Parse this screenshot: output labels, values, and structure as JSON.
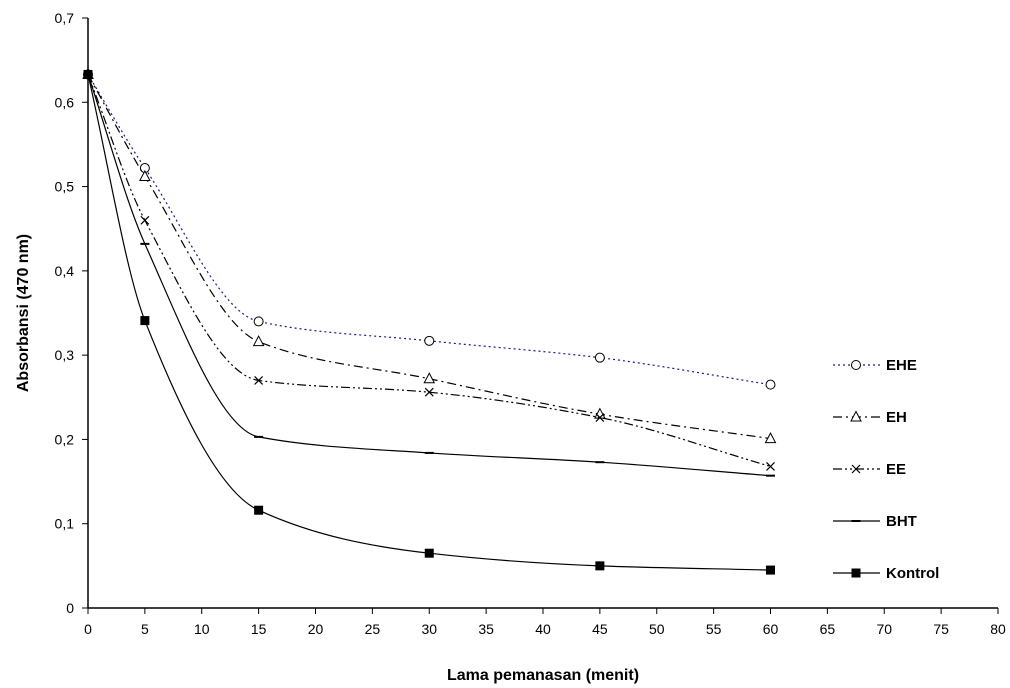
{
  "chart_data": {
    "type": "line",
    "xlabel": "Lama pemanasan (menit)",
    "ylabel": "Absorbansi (470 nm)",
    "xlim": [
      0,
      80
    ],
    "ylim": [
      0,
      0.7
    ],
    "x_ticks": [
      "0",
      "5",
      "10",
      "15",
      "20",
      "25",
      "30",
      "35",
      "40",
      "45",
      "50",
      "55",
      "60",
      "65",
      "70",
      "75",
      "80"
    ],
    "y_ticks": [
      "0",
      "0,1",
      "0,2",
      "0,3",
      "0,4",
      "0,5",
      "0,6",
      "0,7"
    ],
    "grid": false,
    "legend_position": "right",
    "x": [
      0,
      5,
      15,
      30,
      45,
      60
    ],
    "series": [
      {
        "name": "EHE",
        "values": [
          0.633,
          0.522,
          0.34,
          0.317,
          0.297,
          0.265
        ],
        "color": "#1a1a8c",
        "line_style": "dotted",
        "marker": "circle"
      },
      {
        "name": "EH",
        "values": [
          0.633,
          0.512,
          0.316,
          0.272,
          0.23,
          0.201
        ],
        "color": "#000000",
        "line_style": "dash-dot",
        "marker": "triangle"
      },
      {
        "name": "EE",
        "values": [
          0.633,
          0.46,
          0.27,
          0.256,
          0.226,
          0.168
        ],
        "color": "#000000",
        "line_style": "dash-dot-dot",
        "marker": "x"
      },
      {
        "name": "BHT",
        "values": [
          0.633,
          0.432,
          0.203,
          0.184,
          0.173,
          0.157
        ],
        "color": "#000000",
        "line_style": "solid",
        "marker": "dash"
      },
      {
        "name": "Kontrol",
        "values": [
          0.633,
          0.341,
          0.116,
          0.065,
          0.05,
          0.045
        ],
        "color": "#000000",
        "line_style": "solid",
        "marker": "square"
      }
    ]
  }
}
